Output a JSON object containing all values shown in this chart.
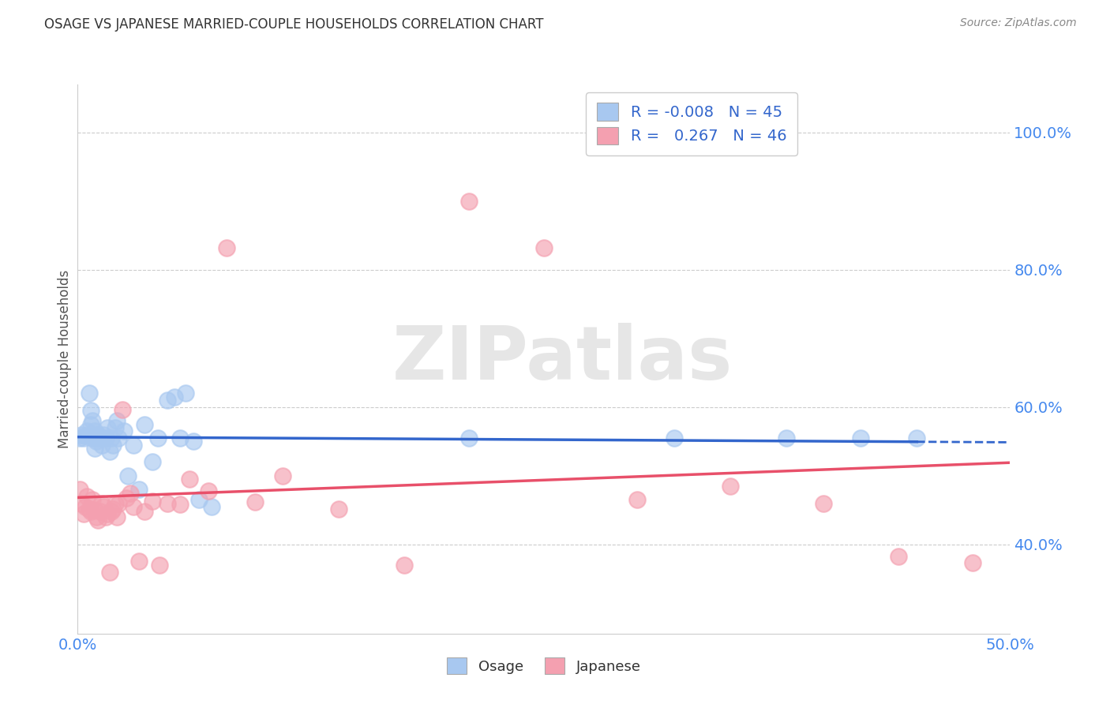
{
  "title": "OSAGE VS JAPANESE MARRIED-COUPLE HOUSEHOLDS CORRELATION CHART",
  "source": "Source: ZipAtlas.com",
  "ylabel": "Married-couple Households",
  "watermark": "ZIPatlas",
  "xlim": [
    0.0,
    0.5
  ],
  "ylim": [
    0.27,
    1.07
  ],
  "yticks": [
    0.4,
    0.6,
    0.8,
    1.0
  ],
  "ytick_labels": [
    "40.0%",
    "60.0%",
    "80.0%",
    "100.0%"
  ],
  "legend_r_osage": "-0.008",
  "legend_n_osage": "45",
  "legend_r_japanese": "0.267",
  "legend_n_japanese": "46",
  "osage_color": "#A8C8F0",
  "japanese_color": "#F4A0B0",
  "trendline_osage_color": "#3366CC",
  "trendline_japanese_color": "#E8506A",
  "background_color": "#ffffff",
  "grid_color": "#cccccc",
  "osage_x": [
    0.001,
    0.002,
    0.003,
    0.004,
    0.005,
    0.006,
    0.007,
    0.007,
    0.008,
    0.008,
    0.009,
    0.009,
    0.01,
    0.01,
    0.011,
    0.012,
    0.013,
    0.014,
    0.015,
    0.016,
    0.017,
    0.018,
    0.019,
    0.02,
    0.021,
    0.022,
    0.025,
    0.027,
    0.03,
    0.033,
    0.036,
    0.04,
    0.043,
    0.048,
    0.052,
    0.055,
    0.058,
    0.062,
    0.065,
    0.072,
    0.21,
    0.32,
    0.38,
    0.42,
    0.45
  ],
  "osage_y": [
    0.555,
    0.56,
    0.555,
    0.558,
    0.565,
    0.62,
    0.595,
    0.575,
    0.58,
    0.555,
    0.565,
    0.54,
    0.55,
    0.555,
    0.56,
    0.555,
    0.545,
    0.56,
    0.555,
    0.57,
    0.535,
    0.555,
    0.545,
    0.57,
    0.58,
    0.555,
    0.565,
    0.5,
    0.545,
    0.48,
    0.575,
    0.52,
    0.555,
    0.61,
    0.615,
    0.555,
    0.62,
    0.55,
    0.465,
    0.455,
    0.555,
    0.555,
    0.555,
    0.555,
    0.555
  ],
  "japanese_x": [
    0.001,
    0.002,
    0.003,
    0.004,
    0.005,
    0.006,
    0.007,
    0.008,
    0.009,
    0.01,
    0.011,
    0.012,
    0.013,
    0.014,
    0.015,
    0.016,
    0.017,
    0.018,
    0.019,
    0.02,
    0.021,
    0.022,
    0.024,
    0.026,
    0.028,
    0.03,
    0.033,
    0.036,
    0.04,
    0.044,
    0.048,
    0.055,
    0.06,
    0.07,
    0.08,
    0.095,
    0.11,
    0.14,
    0.175,
    0.21,
    0.25,
    0.3,
    0.35,
    0.4,
    0.44,
    0.48
  ],
  "japanese_y": [
    0.48,
    0.46,
    0.445,
    0.455,
    0.47,
    0.452,
    0.448,
    0.465,
    0.45,
    0.44,
    0.435,
    0.448,
    0.46,
    0.455,
    0.44,
    0.445,
    0.36,
    0.448,
    0.452,
    0.46,
    0.44,
    0.46,
    0.596,
    0.468,
    0.475,
    0.455,
    0.375,
    0.448,
    0.463,
    0.37,
    0.46,
    0.458,
    0.495,
    0.478,
    0.832,
    0.462,
    0.5,
    0.452,
    0.37,
    0.9,
    0.832,
    0.465,
    0.485,
    0.46,
    0.383,
    0.373
  ]
}
